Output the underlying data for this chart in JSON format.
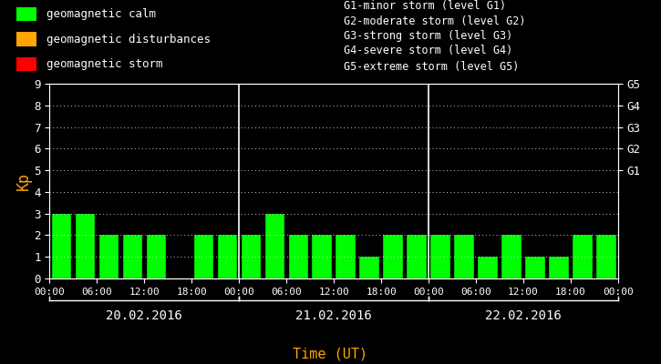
{
  "days": [
    "20.02.2016",
    "21.02.2016",
    "22.02.2016"
  ],
  "kp_values": [
    [
      3,
      3,
      2,
      2,
      2,
      0,
      2,
      2
    ],
    [
      2,
      3,
      2,
      2,
      2,
      1,
      2,
      2
    ],
    [
      2,
      2,
      1,
      2,
      1,
      1,
      2,
      2
    ]
  ],
  "bar_color_calm": "#00FF00",
  "bar_color_disturbance": "#FFA500",
  "bar_color_storm": "#FF0000",
  "bg_color": "#000000",
  "text_color": "#FFFFFF",
  "orange_color": "#FFA500",
  "ylim": [
    0,
    9
  ],
  "yticks": [
    0,
    1,
    2,
    3,
    4,
    5,
    6,
    7,
    8,
    9
  ],
  "right_labels": [
    [
      "G1",
      5
    ],
    [
      "G2",
      6
    ],
    [
      "G3",
      7
    ],
    [
      "G4",
      8
    ],
    [
      "G5",
      9
    ]
  ],
  "legend_items": [
    {
      "label": "geomagnetic calm",
      "color": "#00FF00"
    },
    {
      "label": "geomagnetic disturbances",
      "color": "#FFA500"
    },
    {
      "label": "geomagnetic storm",
      "color": "#FF0000"
    }
  ],
  "storm_legend_text": [
    "G1-minor storm (level G1)",
    "G2-moderate storm (level G2)",
    "G3-strong storm (level G3)",
    "G4-severe storm (level G4)",
    "G5-extreme storm (level G5)"
  ],
  "xlabel": "Time (UT)",
  "ylabel": "Kp",
  "time_labels": [
    "00:00",
    "06:00",
    "12:00",
    "18:00",
    "00:00"
  ],
  "figsize": [
    7.25,
    4.0
  ],
  "dpi": 100
}
